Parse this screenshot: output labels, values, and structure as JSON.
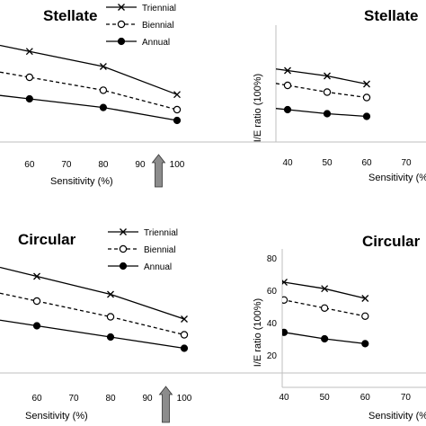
{
  "chart_data": [
    {
      "type": "line",
      "title": "Stellate",
      "xlabel": "Sensitivity (%)",
      "ylabel": "",
      "xticks": [
        60,
        70,
        80,
        90,
        100
      ],
      "yticks": [],
      "x": [
        60,
        80,
        100
      ],
      "arrow_at_x": 95,
      "legend_position": "top-right",
      "series": [
        {
          "name": "Triennial",
          "marker": "x",
          "line": "solid",
          "values": [
            62,
            55,
            42
          ]
        },
        {
          "name": "Biennial",
          "marker": "open-circle",
          "line": "dashed",
          "values": [
            50,
            44,
            35
          ]
        },
        {
          "name": "Annual",
          "marker": "filled-circle",
          "line": "solid",
          "values": [
            40,
            36,
            30
          ]
        }
      ]
    },
    {
      "type": "line",
      "title": "Stellate",
      "xlabel": "Sensitivity (%)",
      "ylabel": "I/E ratio (100%)",
      "xticks": [
        40,
        50,
        60,
        70
      ],
      "yticks": [],
      "x": [
        40,
        50,
        60
      ],
      "legend_position": "none",
      "series": [
        {
          "name": "",
          "marker": "x",
          "line": "solid",
          "values": [
            53,
            49,
            43
          ]
        },
        {
          "name": "",
          "marker": "open-circle",
          "line": "dashed",
          "values": [
            42,
            37,
            33
          ]
        },
        {
          "name": "",
          "marker": "filled-circle",
          "line": "solid",
          "values": [
            24,
            21,
            19
          ]
        }
      ]
    },
    {
      "type": "line",
      "title": "Circular",
      "xlabel": "Sensitivity (%)",
      "ylabel": "",
      "xticks": [
        60,
        70,
        80,
        90,
        100
      ],
      "yticks": [],
      "x": [
        60,
        80,
        100
      ],
      "arrow_at_x": 95,
      "legend_position": "top-right",
      "series": [
        {
          "name": "Triennial",
          "marker": "x",
          "line": "solid",
          "values": [
            63,
            55,
            44
          ]
        },
        {
          "name": "Biennial",
          "marker": "open-circle",
          "line": "dashed",
          "values": [
            52,
            45,
            37
          ]
        },
        {
          "name": "Annual",
          "marker": "filled-circle",
          "line": "solid",
          "values": [
            41,
            36,
            31
          ]
        }
      ]
    },
    {
      "type": "line",
      "title": "Circular",
      "xlabel": "Sensitivity (%)",
      "ylabel": "I/E ratio (100%)",
      "xticks": [
        40,
        50,
        60,
        70
      ],
      "yticks": [
        20,
        40,
        60,
        80
      ],
      "x": [
        40,
        50,
        60
      ],
      "legend_position": "none",
      "series": [
        {
          "name": "",
          "marker": "x",
          "line": "solid",
          "values": [
            65,
            61,
            55
          ]
        },
        {
          "name": "",
          "marker": "open-circle",
          "line": "dashed",
          "values": [
            54,
            49,
            44
          ]
        },
        {
          "name": "",
          "marker": "filled-circle",
          "line": "solid",
          "values": [
            34,
            30,
            27
          ]
        }
      ]
    }
  ]
}
